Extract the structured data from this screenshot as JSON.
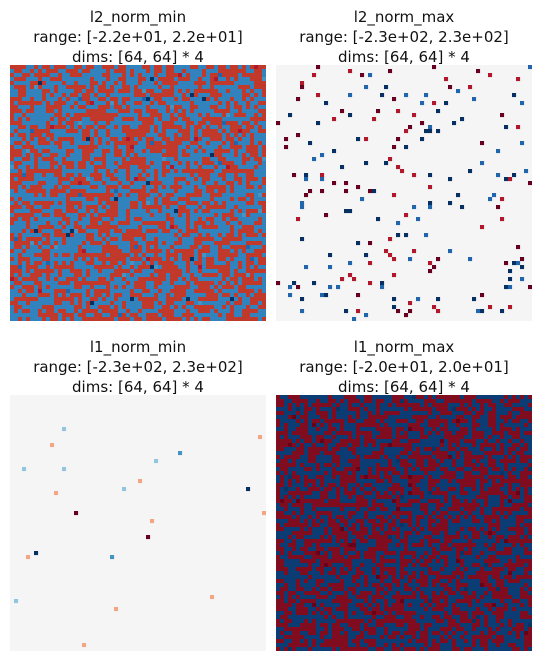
{
  "chart_data": [
    {
      "type": "heatmap",
      "title": "l2_norm_min",
      "range_label": "range: [-2.2e+01, 2.2e+01]",
      "dims_label": "dims: [64, 64] * 4",
      "dims": [
        64,
        64
      ],
      "value_range": [
        -22,
        22
      ],
      "colormap": "RdBu",
      "pattern": "dense",
      "seed": 11,
      "base_color": "#d1e5f0",
      "palette": [
        "#c0392b",
        "#3182bd",
        "#b2182b",
        "#4393c3",
        "#2166ac",
        "#053061"
      ]
    },
    {
      "type": "heatmap",
      "title": "l2_norm_max",
      "range_label": "range: [-2.3e+02, 2.3e+02]",
      "dims_label": "dims: [64, 64] * 4",
      "dims": [
        64,
        64
      ],
      "value_range": [
        -230,
        230
      ],
      "colormap": "RdBu",
      "pattern": "sparse",
      "seed": 27,
      "base_color": "#f5f5f5",
      "palette": [
        "#67001f",
        "#053061",
        "#b2182b",
        "#2166ac"
      ],
      "density": 0.048
    },
    {
      "type": "heatmap",
      "title": "l1_norm_min",
      "range_label": "range: [-2.3e+02, 2.3e+02]",
      "dims_label": "dims: [64, 64] * 4",
      "dims": [
        64,
        64
      ],
      "value_range": [
        -230,
        230
      ],
      "colormap": "RdBu",
      "pattern": "very-sparse",
      "seed": 42,
      "base_color": "#f5f5f5",
      "palette": [
        "#67001f",
        "#053061",
        "#4393c3",
        "#92c5de",
        "#f4a582"
      ],
      "density": 0.008
    },
    {
      "type": "heatmap",
      "title": "l1_norm_max",
      "range_label": "range: [-2.0e+01, 2.0e+01]",
      "dims_label": "dims: [64, 64] * 4",
      "dims": [
        64,
        64
      ],
      "value_range": [
        -20,
        20
      ],
      "colormap": "RdBu",
      "pattern": "dense",
      "seed": 73,
      "base_color": "#0b3c73",
      "palette": [
        "#7f0d1f",
        "#0b3c73",
        "#6a0018",
        "#083566"
      ]
    }
  ]
}
